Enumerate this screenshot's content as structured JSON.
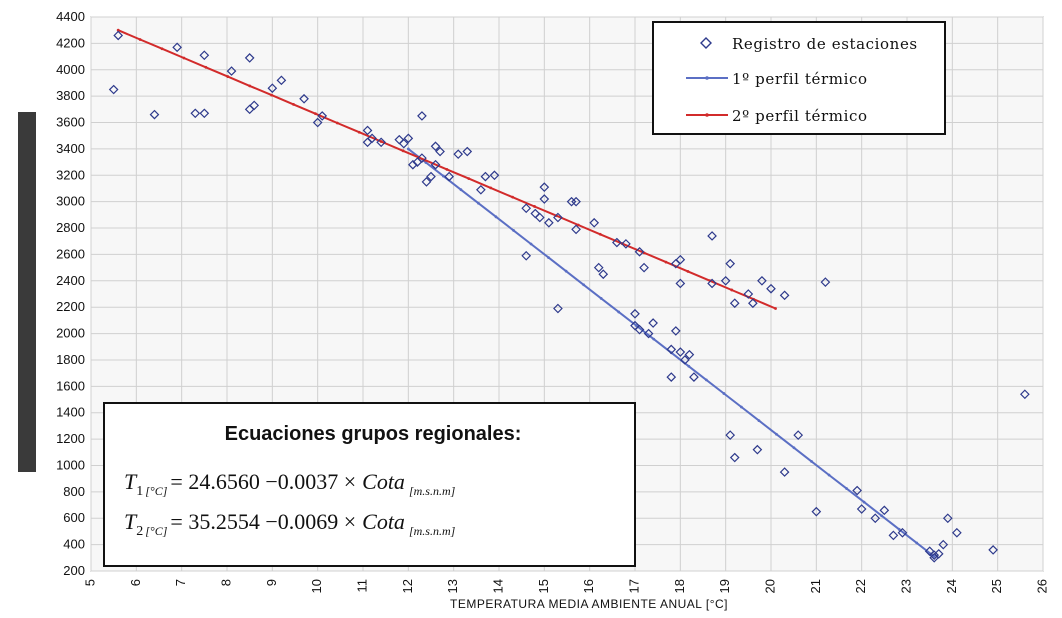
{
  "chart_data": {
    "type": "scatter",
    "title": "",
    "xlabel": "TEMPERATURA MEDIA AMBIENTE ANUAL [°C]",
    "ylabel": "",
    "xlim": [
      5,
      26
    ],
    "ylim": [
      200,
      4400
    ],
    "xticks": [
      5,
      6,
      7,
      8,
      9,
      10,
      11,
      12,
      13,
      14,
      15,
      16,
      17,
      18,
      19,
      20,
      21,
      22,
      23,
      24,
      25,
      26
    ],
    "yticks": [
      200,
      400,
      600,
      800,
      1000,
      1200,
      1400,
      1600,
      1800,
      2000,
      2200,
      2400,
      2600,
      2800,
      3000,
      3200,
      3400,
      3600,
      3800,
      4000,
      4200,
      4400
    ],
    "grid": true,
    "legend_position": "top-right",
    "legend": [
      {
        "label": "Registro de estaciones",
        "color": "#2e3a8c",
        "marker": "diamond"
      },
      {
        "label": "1º perfil térmico",
        "color": "#5b6fc4",
        "marker": "line"
      },
      {
        "label": "2º perfil térmico",
        "color": "#d22b2b",
        "marker": "line"
      }
    ],
    "series": [
      {
        "name": "Registro de estaciones",
        "points": [
          [
            5.5,
            3850
          ],
          [
            5.6,
            4260
          ],
          [
            6.4,
            3660
          ],
          [
            6.9,
            4170
          ],
          [
            7.3,
            3670
          ],
          [
            7.5,
            3670
          ],
          [
            7.5,
            4110
          ],
          [
            8.1,
            3990
          ],
          [
            8.5,
            4090
          ],
          [
            8.5,
            3700
          ],
          [
            8.6,
            3730
          ],
          [
            9.0,
            3860
          ],
          [
            9.2,
            3920
          ],
          [
            9.7,
            3780
          ],
          [
            10.0,
            3600
          ],
          [
            10.1,
            3650
          ],
          [
            11.1,
            3450
          ],
          [
            11.1,
            3540
          ],
          [
            11.2,
            3480
          ],
          [
            11.4,
            3450
          ],
          [
            11.8,
            3470
          ],
          [
            11.9,
            3440
          ],
          [
            12.0,
            3480
          ],
          [
            12.1,
            3280
          ],
          [
            12.2,
            3300
          ],
          [
            12.3,
            3330
          ],
          [
            12.3,
            3650
          ],
          [
            12.4,
            3150
          ],
          [
            12.5,
            3190
          ],
          [
            12.6,
            3420
          ],
          [
            12.6,
            3280
          ],
          [
            12.7,
            3380
          ],
          [
            12.9,
            3190
          ],
          [
            13.1,
            3360
          ],
          [
            13.3,
            3380
          ],
          [
            13.6,
            3090
          ],
          [
            13.7,
            3190
          ],
          [
            13.9,
            3200
          ],
          [
            14.6,
            2590
          ],
          [
            14.6,
            2950
          ],
          [
            14.8,
            2910
          ],
          [
            14.9,
            2880
          ],
          [
            15.0,
            3020
          ],
          [
            15.0,
            3110
          ],
          [
            15.1,
            2840
          ],
          [
            15.3,
            2190
          ],
          [
            15.3,
            2880
          ],
          [
            15.6,
            3000
          ],
          [
            15.7,
            2790
          ],
          [
            15.7,
            3000
          ],
          [
            16.1,
            2840
          ],
          [
            16.2,
            2500
          ],
          [
            16.3,
            2450
          ],
          [
            16.6,
            2690
          ],
          [
            16.8,
            2680
          ],
          [
            17.0,
            2150
          ],
          [
            17.0,
            2060
          ],
          [
            17.1,
            2030
          ],
          [
            17.1,
            2620
          ],
          [
            17.2,
            2500
          ],
          [
            17.3,
            2000
          ],
          [
            17.4,
            2080
          ],
          [
            17.8,
            1880
          ],
          [
            17.8,
            1670
          ],
          [
            17.9,
            2020
          ],
          [
            17.9,
            2530
          ],
          [
            18.0,
            1860
          ],
          [
            18.0,
            2560
          ],
          [
            18.0,
            2380
          ],
          [
            18.1,
            1800
          ],
          [
            18.2,
            1840
          ],
          [
            18.3,
            1670
          ],
          [
            18.7,
            2740
          ],
          [
            18.7,
            2380
          ],
          [
            19.0,
            2400
          ],
          [
            19.1,
            1230
          ],
          [
            19.1,
            2530
          ],
          [
            19.2,
            1060
          ],
          [
            19.2,
            2230
          ],
          [
            19.5,
            2300
          ],
          [
            19.6,
            2230
          ],
          [
            19.7,
            1120
          ],
          [
            19.8,
            2400
          ],
          [
            20.0,
            2340
          ],
          [
            20.3,
            2290
          ],
          [
            20.3,
            950
          ],
          [
            20.6,
            1230
          ],
          [
            21.0,
            650
          ],
          [
            21.2,
            2390
          ],
          [
            21.9,
            810
          ],
          [
            22.0,
            670
          ],
          [
            22.3,
            600
          ],
          [
            22.5,
            660
          ],
          [
            22.7,
            470
          ],
          [
            22.9,
            490
          ],
          [
            23.5,
            350
          ],
          [
            23.6,
            320
          ],
          [
            23.6,
            300
          ],
          [
            23.7,
            330
          ],
          [
            23.8,
            400
          ],
          [
            23.9,
            600
          ],
          [
            24.1,
            490
          ],
          [
            24.9,
            360
          ],
          [
            25.6,
            1540
          ]
        ]
      },
      {
        "name": "1º perfil térmico",
        "x": [
          12.0,
          23.6
        ],
        "y": [
          3400,
          310
        ]
      },
      {
        "name": "2º perfil térmico",
        "x": [
          5.6,
          20.1
        ],
        "y": [
          4300,
          2190
        ]
      }
    ],
    "equations": {
      "title": "Ecuaciones grupos regionales:",
      "eq1": {
        "lhs": "T",
        "sub": "1",
        "unit": "[°C]",
        "rhs": "= 24.6560 −0.0037 ×",
        "var": "Cota",
        "var_sub": "[m.s.n.m]"
      },
      "eq2": {
        "lhs": "T",
        "sub": "2",
        "unit": "[°C]",
        "rhs": "= 35.2554 −0.0069 ×",
        "var": "Cota",
        "var_sub": "[m.s.n.m]"
      }
    }
  }
}
